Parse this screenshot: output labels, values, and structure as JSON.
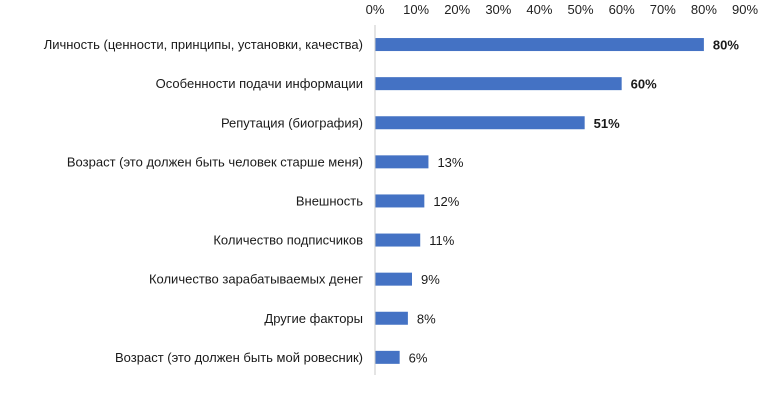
{
  "chart_data": {
    "type": "bar",
    "orientation": "horizontal",
    "categories": [
      "Личность (ценности, принципы, установки, качества)",
      "Особенности подачи информации",
      "Репутация (биография)",
      "Возраст (это должен быть человек старше меня)",
      "Внешность",
      "Количество подписчиков",
      "Количество зарабатываемых денег",
      "Другие факторы",
      "Возраст (это должен быть мой ровесник)"
    ],
    "values": [
      80,
      60,
      51,
      13,
      12,
      11,
      9,
      8,
      6
    ],
    "value_labels": [
      "80%",
      "60%",
      "51%",
      "13%",
      "12%",
      "11%",
      "9%",
      "8%",
      "6%"
    ],
    "bold_labels": [
      true,
      true,
      true,
      false,
      false,
      false,
      false,
      false,
      false
    ],
    "xlim": [
      0,
      90
    ],
    "x_ticks": [
      "0%",
      "10%",
      "20%",
      "30%",
      "40%",
      "50%",
      "60%",
      "70%",
      "80%",
      "90%"
    ],
    "x_axis_position": "top",
    "grid": false,
    "bar_color": "#4472c4"
  }
}
